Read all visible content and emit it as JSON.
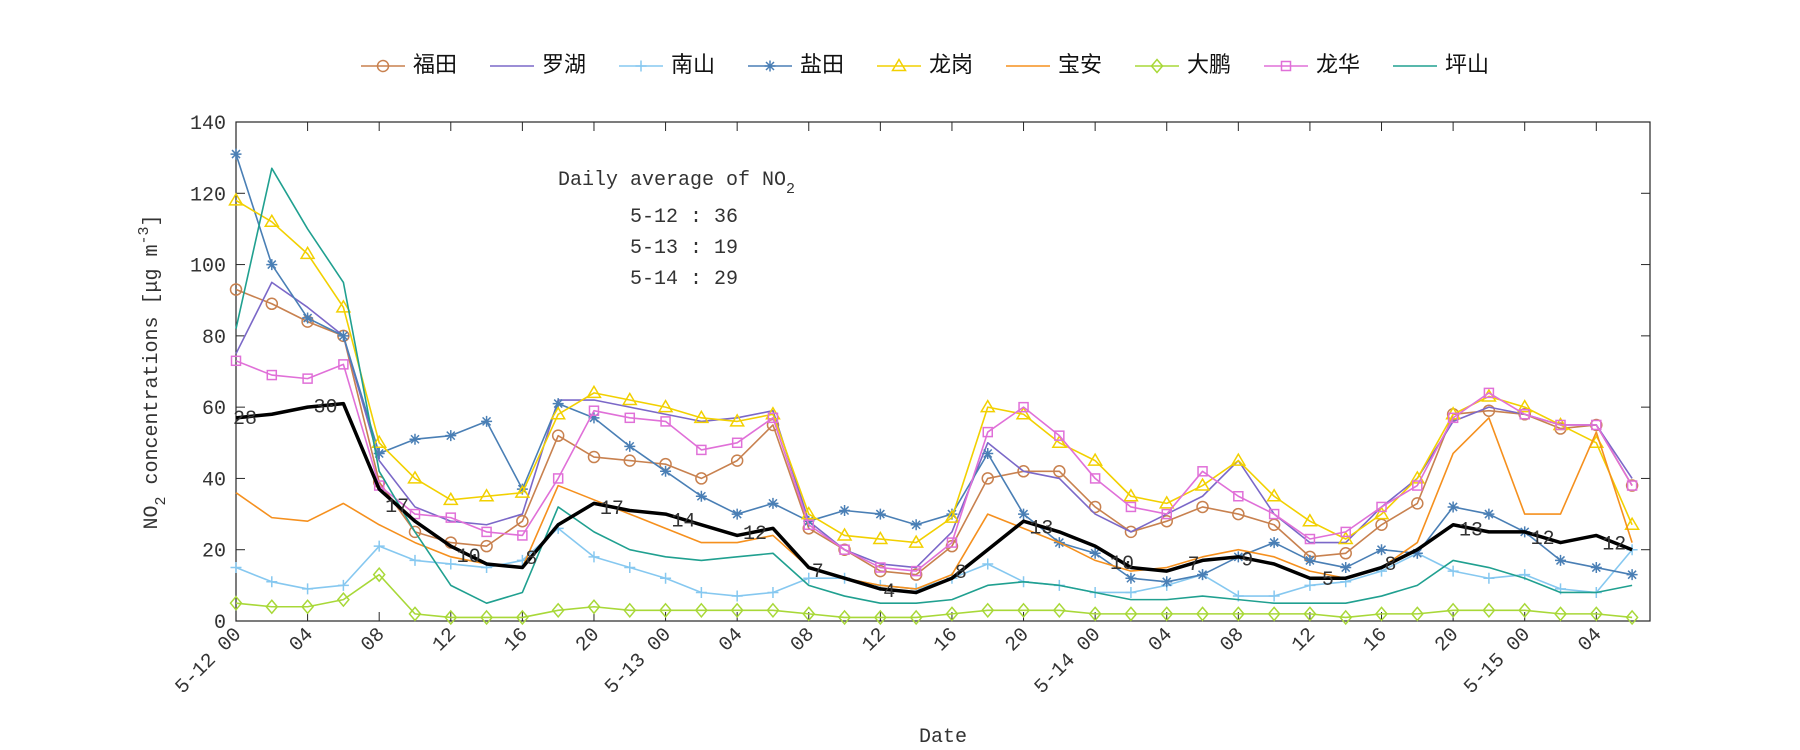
{
  "chart_data": {
    "type": "line",
    "xlabel": "Date",
    "ylabel": {
      "main": "NO",
      "sub": "2",
      "rest": " concentrations [μg m",
      "sup": "-3",
      "end": "]"
    },
    "inset": {
      "title": "Daily average of NO",
      "title_sub": "2",
      "lines": [
        "5-12 : 36",
        "5-13 : 19",
        "5-14 : 29"
      ]
    },
    "xlim": [
      0,
      79
    ],
    "ylim": [
      0,
      140
    ],
    "yticks": [
      0,
      20,
      40,
      60,
      80,
      100,
      120,
      140
    ],
    "xticks": [
      {
        "value": 0,
        "label": "5-12 00"
      },
      {
        "value": 4,
        "label": "04"
      },
      {
        "value": 8,
        "label": "08"
      },
      12,
      16,
      20,
      {
        "value": 24,
        "label": "5-13 00"
      },
      {
        "value": 28,
        "label": "04"
      },
      {
        "value": 32,
        "label": "08"
      },
      {
        "value": 36,
        "label": "12"
      },
      {
        "value": 40,
        "label": "16"
      },
      {
        "value": 44,
        "label": "20"
      },
      {
        "value": 48,
        "label": "5-14 00"
      },
      {
        "value": 52,
        "label": "04"
      },
      {
        "value": 56,
        "label": "08"
      },
      {
        "value": 60,
        "label": "12"
      },
      {
        "value": 64,
        "label": "16"
      },
      {
        "value": 68,
        "label": "20"
      },
      {
        "value": 72,
        "label": "5-15 00"
      },
      {
        "value": 76,
        "label": "04"
      }
    ],
    "x": [
      0,
      2,
      4,
      6,
      8,
      10,
      12,
      14,
      16,
      18,
      20,
      22,
      24,
      26,
      28,
      30,
      32,
      34,
      36,
      38,
      40,
      42,
      44,
      46,
      48,
      50,
      52,
      54,
      56,
      58,
      60,
      62,
      64,
      66,
      68,
      70,
      72,
      74,
      76,
      78
    ],
    "series": [
      {
        "name": "福田",
        "color": "#c8814f",
        "marker": "circle",
        "values": [
          93,
          89,
          84,
          80,
          39,
          25,
          22,
          21,
          28,
          52,
          46,
          45,
          44,
          40,
          45,
          55,
          26,
          20,
          14,
          13,
          21,
          40,
          42,
          42,
          32,
          25,
          28,
          32,
          30,
          27,
          18,
          19,
          27,
          33,
          58,
          59,
          58,
          54,
          55,
          38
        ]
      },
      {
        "name": "罗湖",
        "color": "#7b68c8",
        "marker": null,
        "values": [
          75,
          95,
          88,
          80,
          45,
          32,
          28,
          27,
          30,
          62,
          62,
          60,
          58,
          56,
          57,
          59,
          28,
          20,
          16,
          15,
          25,
          50,
          42,
          40,
          30,
          25,
          30,
          35,
          45,
          30,
          22,
          22,
          32,
          40,
          56,
          60,
          58,
          55,
          55,
          40
        ]
      },
      {
        "name": "南山",
        "color": "#86c8f0",
        "marker": "plus",
        "values": [
          15,
          11,
          9,
          10,
          21,
          17,
          16,
          15,
          17,
          26,
          18,
          15,
          12,
          8,
          7,
          8,
          12,
          12,
          10,
          9,
          12,
          16,
          11,
          10,
          8,
          8,
          10,
          13,
          7,
          7,
          10,
          11,
          14,
          19,
          14,
          12,
          13,
          9,
          8,
          20
        ]
      },
      {
        "name": "盐田",
        "color": "#4a7fb5",
        "marker": "star",
        "values": [
          131,
          100,
          85,
          80,
          47,
          51,
          52,
          56,
          37,
          61,
          57,
          49,
          42,
          35,
          30,
          33,
          28,
          31,
          30,
          27,
          30,
          47,
          30,
          22,
          19,
          12,
          11,
          13,
          18,
          22,
          17,
          15,
          20,
          19,
          32,
          30,
          25,
          17,
          15,
          13
        ]
      },
      {
        "name": "龙岗",
        "color": "#f2d000",
        "marker": "triangle",
        "values": [
          118,
          112,
          103,
          88,
          50,
          40,
          34,
          35,
          36,
          58,
          64,
          62,
          60,
          57,
          56,
          58,
          30,
          24,
          23,
          22,
          29,
          60,
          58,
          50,
          45,
          35,
          33,
          38,
          45,
          35,
          28,
          23,
          30,
          40,
          58,
          63,
          60,
          55,
          50,
          27
        ]
      },
      {
        "name": "宝安",
        "color": "#f5901e",
        "marker": null,
        "values": [
          36,
          29,
          28,
          33,
          27,
          22,
          18,
          16,
          15,
          38,
          34,
          30,
          26,
          22,
          22,
          24,
          15,
          12,
          10,
          9,
          13,
          30,
          26,
          22,
          17,
          14,
          15,
          18,
          20,
          18,
          14,
          12,
          15,
          22,
          47,
          57,
          30,
          30,
          53,
          22
        ]
      },
      {
        "name": "大鹏",
        "color": "#a8d838",
        "marker": "diamond",
        "values": [
          5,
          4,
          4,
          6,
          13,
          2,
          1,
          1,
          1,
          3,
          4,
          3,
          3,
          3,
          3,
          3,
          2,
          1,
          1,
          1,
          2,
          3,
          3,
          3,
          2,
          2,
          2,
          2,
          2,
          2,
          2,
          1,
          2,
          2,
          3,
          3,
          3,
          2,
          2,
          1
        ]
      },
      {
        "name": "龙华",
        "color": "#e070d8",
        "marker": "square",
        "values": [
          73,
          69,
          68,
          72,
          38,
          30,
          29,
          25,
          24,
          40,
          59,
          57,
          56,
          48,
          50,
          57,
          27,
          20,
          15,
          14,
          22,
          53,
          60,
          52,
          40,
          32,
          30,
          42,
          35,
          30,
          23,
          25,
          32,
          38,
          57,
          64,
          58,
          55,
          55,
          38
        ]
      },
      {
        "name": "坪山",
        "color": "#20a090",
        "marker": null,
        "values": [
          82,
          127,
          110,
          95,
          42,
          25,
          10,
          5,
          8,
          32,
          25,
          20,
          18,
          17,
          18,
          19,
          10,
          7,
          5,
          5,
          6,
          10,
          11,
          10,
          8,
          6,
          6,
          7,
          6,
          5,
          5,
          5,
          7,
          10,
          17,
          15,
          12,
          8,
          8,
          10
        ]
      },
      {
        "color": "#000000",
        "marker": null,
        "width": 3.5,
        "values": [
          57,
          58,
          60,
          61,
          37,
          28,
          21,
          16,
          15,
          27,
          33,
          31,
          30,
          27,
          24,
          26,
          15,
          12,
          9,
          8,
          12,
          20,
          28,
          25,
          21,
          15,
          14,
          17,
          18,
          16,
          12,
          12,
          15,
          20,
          27,
          25,
          25,
          22,
          24,
          20
        ]
      }
    ],
    "point_labels": {
      "x": [
        0.5,
        5,
        9,
        13,
        16.5,
        21,
        25,
        29,
        32.5,
        36.5,
        40.5,
        45,
        49.5,
        53.5,
        56.5,
        61,
        64.5,
        69,
        73,
        77
      ],
      "values": [
        28,
        30,
        17,
        10,
        8,
        17,
        14,
        12,
        7,
        4,
        8,
        13,
        10,
        7,
        9,
        5,
        8,
        13,
        12,
        12
      ]
    }
  }
}
